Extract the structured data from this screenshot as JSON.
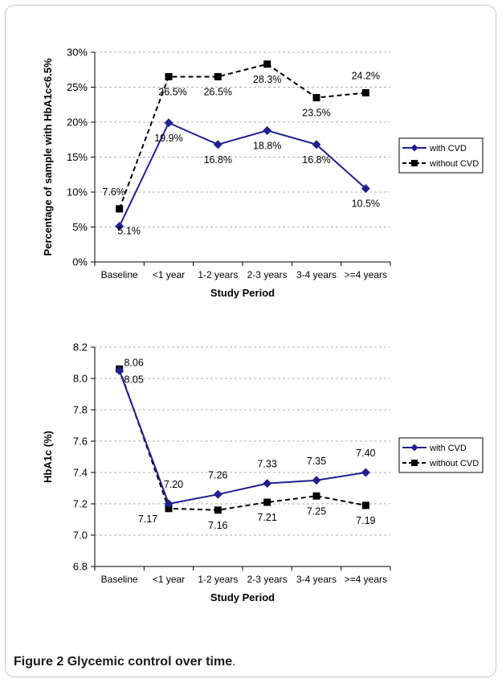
{
  "caption": {
    "label": "Figure 2",
    "text": "Glycemic control over time",
    "period": "."
  },
  "chart_data": [
    {
      "type": "line",
      "ylabel": "Percentage of sample with HbA1c<6.5%",
      "xlabel": "Study Period",
      "categories": [
        "Baseline",
        "<1 year",
        "1-2 years",
        "2-3 years",
        "3-4 years",
        ">=4 years"
      ],
      "ylim": [
        0,
        30
      ],
      "yticks": [
        0,
        5,
        10,
        15,
        20,
        25,
        30
      ],
      "ytick_labels": [
        "0%",
        "5%",
        "10%",
        "15%",
        "20%",
        "25%",
        "30%"
      ],
      "grid": "horizontal dashed",
      "legend": "right",
      "series": [
        {
          "name": "with CVD",
          "values": [
            5.1,
            19.9,
            16.8,
            18.8,
            16.8,
            10.5
          ],
          "labels": [
            "5.1%",
            "19.9%",
            "16.8%",
            "18.8%",
            "16.8%",
            "10.5%"
          ],
          "color": "#1f1f8f",
          "marker": "diamond",
          "dash": "solid"
        },
        {
          "name": "without CVD",
          "values": [
            7.6,
            26.5,
            26.5,
            28.3,
            23.5,
            24.2
          ],
          "labels": [
            "7.6%",
            "26.5%",
            "26.5%",
            "28.3%",
            "23.5%",
            "24.2%"
          ],
          "color": "#000000",
          "marker": "square",
          "dash": "dashed"
        }
      ]
    },
    {
      "type": "line",
      "ylabel": "HbA1c (%)",
      "xlabel": "Study Period",
      "categories": [
        "Baseline",
        "<1 year",
        "1-2 years",
        "2-3 years",
        "3-4 years",
        ">=4 years"
      ],
      "ylim": [
        6.8,
        8.2
      ],
      "yticks": [
        6.8,
        7.0,
        7.2,
        7.4,
        7.6,
        7.8,
        8.0,
        8.2
      ],
      "ytick_labels": [
        "6.8",
        "7.0",
        "7.2",
        "7.4",
        "7.6",
        "7.8",
        "8.0",
        "8.2"
      ],
      "grid": "horizontal dashed",
      "legend": "right",
      "series": [
        {
          "name": "with CVD",
          "values": [
            8.05,
            7.2,
            7.26,
            7.33,
            7.35,
            7.4
          ],
          "labels": [
            "8.05",
            "7.20",
            "7.26",
            "7.33",
            "7.35",
            "7.40"
          ],
          "color": "#1f1f8f",
          "marker": "diamond",
          "dash": "solid"
        },
        {
          "name": "without CVD",
          "values": [
            8.06,
            7.17,
            7.16,
            7.21,
            7.25,
            7.19
          ],
          "labels": [
            "8.06",
            "7.17",
            "7.16",
            "7.21",
            "7.25",
            "7.19"
          ],
          "color": "#000000",
          "marker": "square",
          "dash": "dashed"
        }
      ]
    }
  ]
}
